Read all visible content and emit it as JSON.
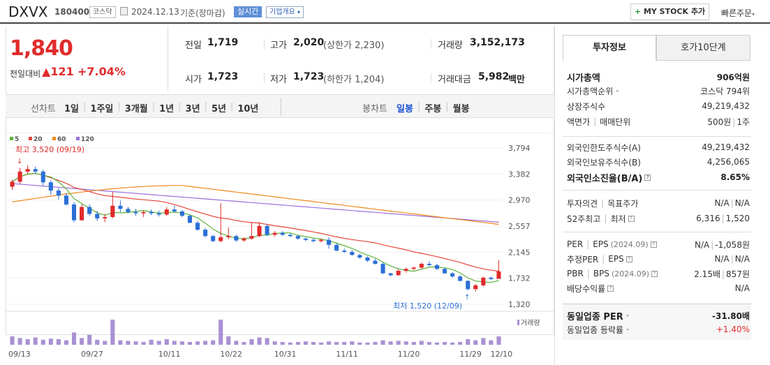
{
  "header": {
    "name": "DXVX",
    "code": "180400",
    "market_tag": "코스닥",
    "date": "2024.12.13",
    "date_suffix": "기준(장마감)",
    "realtime_label": "실시간",
    "company_info_label": "기업개요",
    "my_stock_label": "MY STOCK 추가",
    "quick_order_label": "빠른주문"
  },
  "price": {
    "current": "1,840",
    "change_label": "전일대비",
    "change": "121",
    "change_pct": "+7.04%"
  },
  "summary": {
    "prev_label": "전일",
    "prev": "1,719",
    "high_label": "고가",
    "high": "2,020",
    "high_note_pre": "(상한가",
    "upper_limit": "2,230",
    "high_note_post": ")",
    "volume_label": "거래량",
    "volume": "3,152,173",
    "open_label": "시가",
    "open": "1,723",
    "low_label": "저가",
    "low": "1,723",
    "low_note_pre": "(하한가",
    "lower_limit": "1,204",
    "low_note_post": ")",
    "amount_label": "거래대금",
    "amount": "5,982",
    "amount_unit": "백만"
  },
  "line_chart_tabs": {
    "label": "선차트",
    "items": [
      "1일",
      "1주일",
      "3개월",
      "1년",
      "3년",
      "5년",
      "10년"
    ]
  },
  "candle_tabs": {
    "label": "봉차트",
    "items": [
      "일봉",
      "주봉",
      "월봉"
    ],
    "active": "일봉"
  },
  "chart_data": {
    "type": "candlestick",
    "ma_legend": [
      {
        "name": "5",
        "color": "#5cb23b"
      },
      {
        "name": "20",
        "color": "#e6473a"
      },
      {
        "name": "60",
        "color": "#f08a1c"
      },
      {
        "name": "120",
        "color": "#9b6fd9"
      }
    ],
    "y_ticks": [
      "3,794",
      "3,382",
      "2,970",
      "2,557",
      "2,145",
      "1,732",
      "1,320"
    ],
    "ylim": [
      1320,
      3794
    ],
    "x_ticks": [
      "09/13",
      "09/27",
      "10/11",
      "10/22",
      "10/31",
      "11/11",
      "11/20",
      "11/29",
      "12/10"
    ],
    "max_annotation": "최고 3,520 (09/19)",
    "min_annotation": "최저 1,520 (12/09)",
    "volume_label": "거래량",
    "ohlc": [
      [
        3180,
        3290,
        3130,
        3260
      ],
      [
        3260,
        3480,
        3230,
        3420
      ],
      [
        3420,
        3520,
        3380,
        3460
      ],
      [
        3460,
        3500,
        3380,
        3420
      ],
      [
        3420,
        3450,
        3200,
        3250
      ],
      [
        3250,
        3280,
        3050,
        3120
      ],
      [
        3120,
        3160,
        2980,
        3040
      ],
      [
        3040,
        3080,
        2880,
        2900
      ],
      [
        2900,
        2940,
        2620,
        2650
      ],
      [
        2650,
        2900,
        2640,
        2860
      ],
      [
        2860,
        2900,
        2720,
        2750
      ],
      [
        2750,
        2800,
        2640,
        2680
      ],
      [
        2680,
        2750,
        2620,
        2700
      ],
      [
        2700,
        3100,
        2680,
        2880
      ],
      [
        2880,
        2960,
        2780,
        2830
      ],
      [
        2830,
        2860,
        2760,
        2780
      ],
      [
        2780,
        2830,
        2720,
        2760
      ],
      [
        2760,
        2800,
        2700,
        2780
      ],
      [
        2780,
        2820,
        2730,
        2760
      ],
      [
        2760,
        2800,
        2710,
        2740
      ],
      [
        2740,
        2860,
        2720,
        2820
      ],
      [
        2820,
        2880,
        2770,
        2790
      ],
      [
        2790,
        2810,
        2700,
        2720
      ],
      [
        2720,
        2740,
        2600,
        2610
      ],
      [
        2610,
        2640,
        2480,
        2500
      ],
      [
        2500,
        2530,
        2380,
        2400
      ],
      [
        2400,
        2420,
        2300,
        2320
      ],
      [
        2320,
        2920,
        2300,
        2380
      ],
      [
        2380,
        2540,
        2350,
        2400
      ],
      [
        2400,
        2420,
        2310,
        2330
      ],
      [
        2330,
        2380,
        2310,
        2360
      ],
      [
        2360,
        2620,
        2340,
        2400
      ],
      [
        2400,
        2620,
        2380,
        2560
      ],
      [
        2560,
        2580,
        2400,
        2420
      ],
      [
        2420,
        2480,
        2390,
        2450
      ],
      [
        2450,
        2480,
        2400,
        2420
      ],
      [
        2420,
        2440,
        2380,
        2400
      ],
      [
        2400,
        2420,
        2340,
        2360
      ],
      [
        2360,
        2380,
        2320,
        2340
      ],
      [
        2340,
        2360,
        2300,
        2320
      ],
      [
        2320,
        2360,
        2300,
        2340
      ],
      [
        2340,
        2380,
        2200,
        2260
      ],
      [
        2260,
        2290,
        2160,
        2170
      ],
      [
        2170,
        2200,
        2130,
        2150
      ],
      [
        2150,
        2180,
        2090,
        2100
      ],
      [
        2100,
        2120,
        2040,
        2060
      ],
      [
        2060,
        2080,
        1990,
        2010
      ],
      [
        2010,
        2040,
        1950,
        1960
      ],
      [
        1960,
        1980,
        1800,
        1810
      ],
      [
        1810,
        1820,
        1760,
        1780
      ],
      [
        1780,
        1880,
        1770,
        1850
      ],
      [
        1850,
        1900,
        1820,
        1880
      ],
      [
        1880,
        1920,
        1860,
        1900
      ],
      [
        1900,
        1980,
        1880,
        1960
      ],
      [
        1960,
        2000,
        1920,
        1940
      ],
      [
        1940,
        1960,
        1860,
        1880
      ],
      [
        1880,
        1900,
        1800,
        1810
      ],
      [
        1810,
        1830,
        1740,
        1760
      ],
      [
        1760,
        1780,
        1680,
        1690
      ],
      [
        1690,
        1700,
        1540,
        1560
      ],
      [
        1560,
        1640,
        1520,
        1620
      ],
      [
        1620,
        1760,
        1600,
        1740
      ],
      [
        1740,
        1760,
        1700,
        1720
      ],
      [
        1723,
        2020,
        1723,
        1840
      ]
    ],
    "volume": [
      1.5,
      1.2,
      1.0,
      1.3,
      0.9,
      1.1,
      1.0,
      0.8,
      2.2,
      1.2,
      1.8,
      0.9,
      0.7,
      4.5,
      0.8,
      0.7,
      0.6,
      0.5,
      0.9,
      0.7,
      1.0,
      0.7,
      0.6,
      0.5,
      0.6,
      0.7,
      0.8,
      4.5,
      1.5,
      0.7,
      0.5,
      1.0,
      1.3,
      1.2,
      0.6,
      0.5,
      0.4,
      0.5,
      0.6,
      0.5,
      0.4,
      0.6,
      0.5,
      0.5,
      0.6,
      0.4,
      0.4,
      0.5,
      0.8,
      0.6,
      0.7,
      0.6,
      0.5,
      0.7,
      0.5,
      0.4,
      0.5,
      0.4,
      0.5,
      1.0,
      0.8,
      1.2,
      0.8,
      1.5
    ]
  },
  "side_tabs": [
    "투자정보",
    "호가10단계"
  ],
  "side": {
    "market_cap_label": "시가총액",
    "market_cap": "906억원",
    "cap_rank_label": "시가총액순위",
    "cap_rank": "코스닥 794위",
    "shares_label": "상장주식수",
    "shares": "49,219,432",
    "par_label": "액면가",
    "unit_label": "매매단위",
    "par": "500원",
    "unit": "1주",
    "foreign_limit_label": "외국인한도주식수(A)",
    "foreign_limit": "49,219,432",
    "foreign_hold_label": "외국인보유주식수(B)",
    "foreign_hold": "4,256,065",
    "foreign_rate_label": "외국인소진율(B/A)",
    "foreign_rate": "8.65%",
    "opinion_label": "투자의견",
    "target_label": "목표주가",
    "opinion": "N/A",
    "target": "N/A",
    "w52_label": "52주최고",
    "w52_low_label": "최저",
    "w52_high": "6,316",
    "w52_low": "1,520",
    "per_label": "PER",
    "eps_label": "EPS",
    "eps_date": "(2024.09)",
    "per": "N/A",
    "eps": "-1,058원",
    "est_per_label": "추정PER",
    "est_eps_label": "EPS",
    "est_per": "N/A",
    "est_eps": "N/A",
    "pbr_label": "PBR",
    "bps_label": "BPS",
    "bps_date": "(2024.09)",
    "pbr": "2.15배",
    "bps": "857원",
    "dividend_label": "배당수익률",
    "dividend": "N/A",
    "sector_per_label": "동일업종 PER",
    "sector_per": "-31.80배",
    "sector_rate_label": "동일업종 등락률",
    "sector_rate": "+1.40%"
  }
}
